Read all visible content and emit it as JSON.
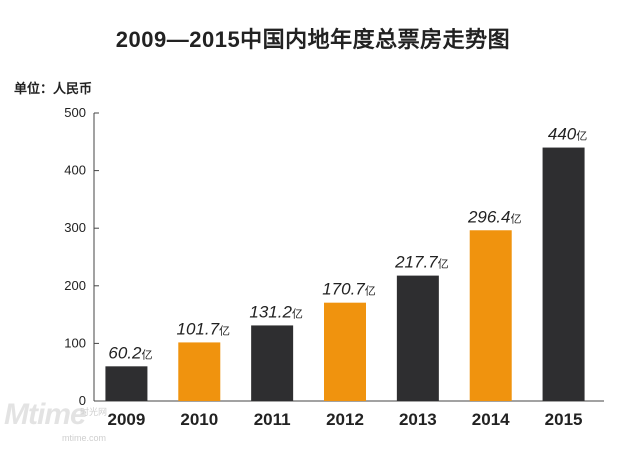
{
  "chart_data": {
    "type": "bar",
    "title": "2009—2015中国内地年度总票房走势图",
    "unit_label": "单位：人民币",
    "categories": [
      "2009",
      "2010",
      "2011",
      "2012",
      "2013",
      "2014",
      "2015"
    ],
    "values": [
      60.2,
      101.7,
      131.2,
      170.7,
      217.7,
      296.4,
      440
    ],
    "value_labels": [
      "60.2",
      "101.7",
      "131.2",
      "170.7",
      "217.7",
      "296.4",
      "440"
    ],
    "value_suffix": "亿",
    "bar_colors": [
      "#2e2e30",
      "#f0930e",
      "#2e2e30",
      "#f0930e",
      "#2e2e30",
      "#f0930e",
      "#2e2e30"
    ],
    "yticks": [
      0,
      100,
      200,
      300,
      400,
      500
    ],
    "ylim": [
      0,
      500
    ],
    "xlabel": "",
    "ylabel": "",
    "grid": false
  },
  "watermark": {
    "logo": "Mtime",
    "sub1": "时光网",
    "sub2": "mtime.com"
  }
}
